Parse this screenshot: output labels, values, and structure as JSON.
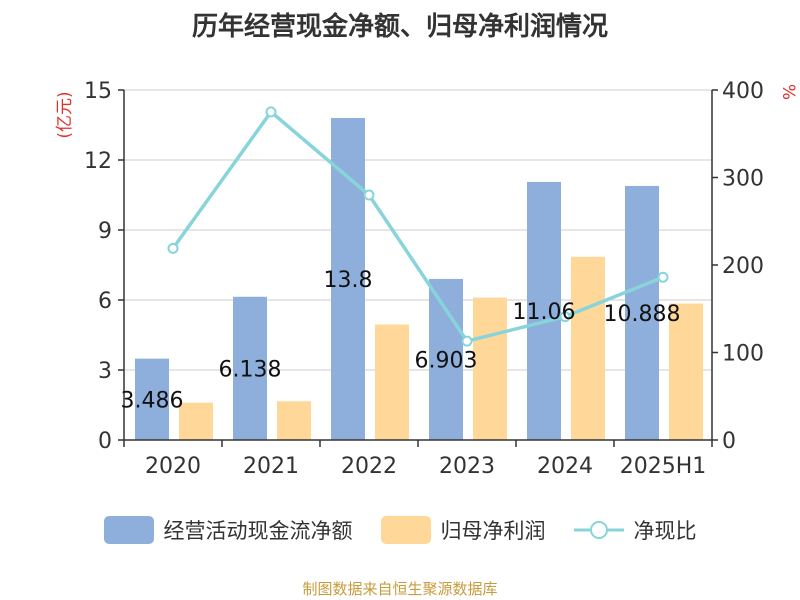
{
  "title": "历年经营现金净额、归母净利润情况",
  "source": "制图数据来自恒生聚源数据库",
  "colors": {
    "cashflow": "#8EAEDB",
    "netprofit": "#FFD899",
    "ratio": "#88D4DB",
    "axis_unit": "#e03030",
    "grid": "#cccccc",
    "text": "#333333"
  },
  "legend": {
    "cashflow": "经营活动现金流净额",
    "netprofit": "归母净利润",
    "ratio": "净现比"
  },
  "chart_data": {
    "type": "bar",
    "categories": [
      "2020",
      "2021",
      "2022",
      "2023",
      "2024",
      "2025H1"
    ],
    "left_axis": {
      "unit": "(亿元)",
      "ylim": [
        0,
        15
      ],
      "ticks": [
        "0",
        "3",
        "6",
        "9",
        "12",
        "15"
      ]
    },
    "right_axis": {
      "unit": "%",
      "ylim": [
        0,
        400
      ],
      "ticks": [
        "0",
        "100",
        "200",
        "300",
        "400"
      ]
    },
    "series": [
      {
        "name": "经营活动现金流净额",
        "type": "bar",
        "axis": "left",
        "values": [
          3.486,
          6.138,
          13.8,
          6.903,
          11.06,
          10.888
        ],
        "labels": [
          "3.486",
          "6.138",
          "13.8",
          "6.903",
          "11.06",
          "10.888"
        ]
      },
      {
        "name": "归母净利润",
        "type": "bar",
        "axis": "left",
        "values": [
          1.6,
          1.66,
          4.95,
          6.1,
          7.85,
          5.85
        ]
      },
      {
        "name": "净现比",
        "type": "line",
        "axis": "right",
        "values": [
          219,
          375,
          280,
          113,
          141,
          186
        ]
      }
    ],
    "grid": true,
    "legend_position": "bottom"
  }
}
